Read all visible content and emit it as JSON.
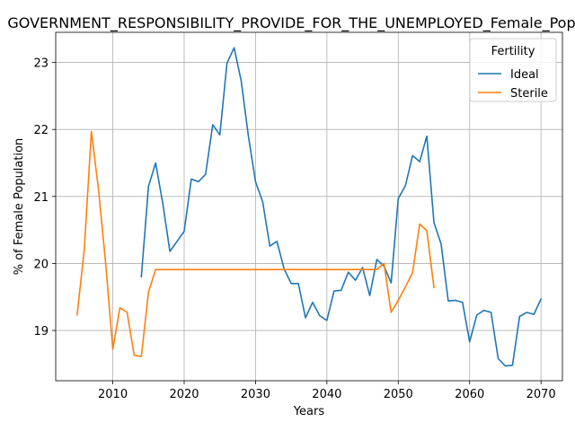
{
  "chart_data": {
    "type": "line",
    "title": "GOVERNMENT_RESPONSIBILITY_PROVIDE_FOR_THE_UNEMPLOYED_Female_Population",
    "xlabel": "Years",
    "ylabel": "% of Female Population",
    "xlim": [
      2002,
      2073
    ],
    "ylim": [
      18.25,
      23.45
    ],
    "xticks": [
      2010,
      2020,
      2030,
      2040,
      2050,
      2060,
      2070
    ],
    "yticks": [
      19,
      20,
      21,
      22,
      23
    ],
    "grid": true,
    "legend": {
      "title": "Fertility",
      "placement": "top-right"
    },
    "series": [
      {
        "name": "Ideal",
        "color": "#1f77b4",
        "x": [
          2014,
          2015,
          2016,
          2017,
          2018,
          2019,
          2020,
          2021,
          2022,
          2023,
          2024,
          2025,
          2026,
          2027,
          2028,
          2029,
          2030,
          2031,
          2032,
          2033,
          2034,
          2035,
          2036,
          2037,
          2038,
          2039,
          2040,
          2041,
          2042,
          2043,
          2044,
          2045,
          2046,
          2047,
          2048,
          2049,
          2050,
          2051,
          2052,
          2053,
          2054,
          2055,
          2056,
          2057,
          2058,
          2059,
          2060,
          2061,
          2062,
          2063,
          2064,
          2065,
          2066,
          2067,
          2068,
          2069,
          2070
        ],
        "y": [
          19.8,
          21.15,
          21.5,
          20.9,
          20.18,
          20.33,
          20.48,
          21.26,
          21.22,
          21.33,
          22.07,
          21.92,
          22.99,
          23.22,
          22.72,
          21.9,
          21.22,
          20.92,
          20.26,
          20.33,
          19.92,
          19.7,
          19.7,
          19.19,
          19.42,
          19.22,
          19.15,
          19.59,
          19.6,
          19.87,
          19.75,
          19.94,
          19.52,
          20.06,
          19.96,
          19.71,
          20.97,
          21.16,
          21.61,
          21.52,
          21.9,
          20.61,
          20.29,
          19.44,
          19.45,
          19.42,
          18.83,
          19.23,
          19.3,
          19.27,
          18.58,
          18.47,
          18.48,
          19.21,
          19.27,
          19.24,
          19.47
        ]
      },
      {
        "name": "Sterile",
        "color": "#ff7f0e",
        "x": [
          2005,
          2006,
          2007,
          2008,
          2009,
          2010,
          2011,
          2012,
          2013,
          2014,
          2015,
          2016,
          2017,
          2018,
          2019,
          2020,
          2021,
          2022,
          2023,
          2024,
          2025,
          2026,
          2027,
          2028,
          2029,
          2030,
          2031,
          2032,
          2033,
          2034,
          2035,
          2036,
          2037,
          2038,
          2039,
          2040,
          2041,
          2042,
          2043,
          2044,
          2045,
          2046,
          2047,
          2048,
          2049,
          2050,
          2051,
          2052,
          2053,
          2054,
          2055
        ],
        "y": [
          19.23,
          20.2,
          21.97,
          21.1,
          20.0,
          18.72,
          19.34,
          19.27,
          18.63,
          18.61,
          19.57,
          19.91,
          19.91,
          19.91,
          19.91,
          19.91,
          19.91,
          19.91,
          19.91,
          19.91,
          19.91,
          19.91,
          19.91,
          19.91,
          19.91,
          19.91,
          19.91,
          19.91,
          19.91,
          19.91,
          19.91,
          19.91,
          19.91,
          19.91,
          19.91,
          19.91,
          19.91,
          19.91,
          19.91,
          19.91,
          19.91,
          19.91,
          19.91,
          20.0,
          19.27,
          19.45,
          19.65,
          19.86,
          20.59,
          20.49,
          19.64
        ]
      }
    ]
  }
}
